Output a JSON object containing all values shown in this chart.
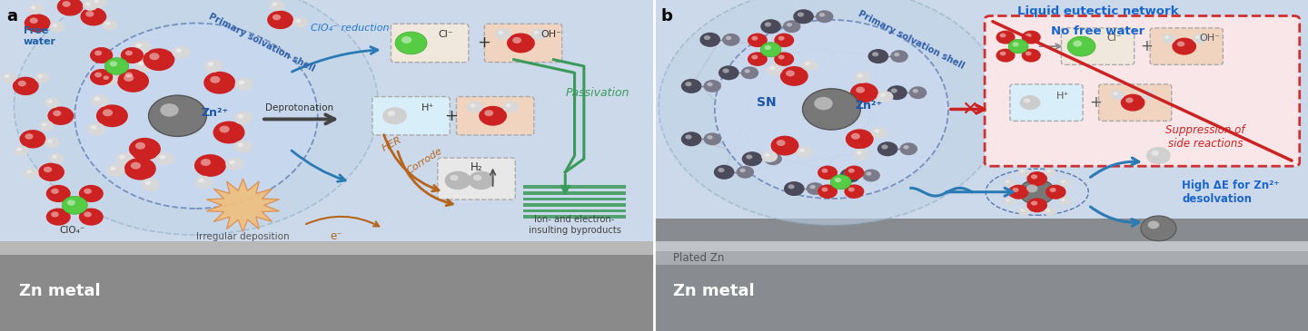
{
  "fig_width": 14.4,
  "fig_height": 3.65,
  "dpi": 100,
  "bg_color_a": "#ccd9ea",
  "bg_color_b": "#ccd9ea",
  "metal_color_a": "#9a9a9a",
  "metal_color_b": "#a8acb0",
  "panel_a_label": "a",
  "panel_b_label": "b",
  "title_b_line1": "Liquid eutectic network",
  "title_b_line2": "No free water",
  "free_water_label": "Free\nwater",
  "primary_solvation_label": "Primary solvation shell",
  "zn_label_a": "Zn²⁺",
  "zn_label_b": "Zn²⁺",
  "sn_label": "SN",
  "clo4_reduction": "ClO₄⁻ reduction",
  "deprotonation": "Deprotonation",
  "cl_label": "Cl⁻",
  "oh_label": "OH⁻",
  "h_label": "H⁺",
  "passivation": "Passivation",
  "her_label": "HER",
  "corrode_label": "Corrode",
  "h2_label": "H₂",
  "irregular_dep": "Irregular deposition",
  "electron_label": "e⁻",
  "ion_electron": "Ion- and electron-\ninsulting byproducts",
  "suppression": "Suppression of\nside reactions",
  "high_delta_e": "High ΔE for Zn²⁺\ndesolvation",
  "zn_metal_a": "Zn metal",
  "zn_metal_b": "Zn metal",
  "plated_zn": "Plated Zn",
  "clo4_label": "ClO₄⁻",
  "blue_arrow_color": "#2a7bb5",
  "green_color": "#3a9a5a",
  "brown_color": "#b5651d",
  "red_color": "#cc2222"
}
